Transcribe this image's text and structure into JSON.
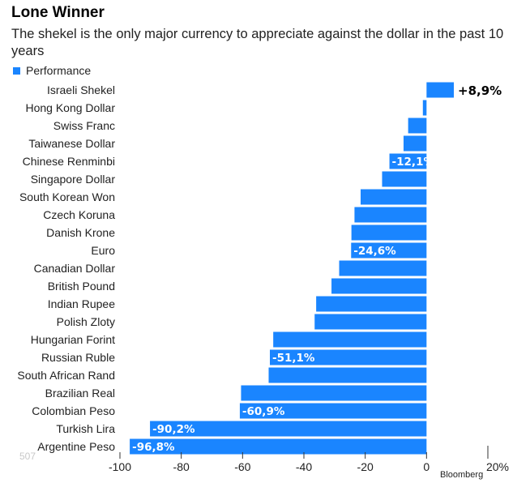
{
  "header": {
    "title": "Lone Winner",
    "subtitle": "The shekel is the only major currency to appreciate against the dollar in the past 10 years"
  },
  "legend": {
    "label": "Performance",
    "color": "#1a85ff"
  },
  "source": "Bloomberg",
  "watermark": "507",
  "chart_data": {
    "type": "bar",
    "orientation": "horizontal",
    "title": "Lone Winner",
    "subtitle": "The shekel is the only major currency to appreciate against the dollar in the past 10 years",
    "series": [
      {
        "name": "Performance",
        "color": "#1a85ff"
      }
    ],
    "categories": [
      "Israeli Shekel",
      "Hong Kong Dollar",
      "Swiss Franc",
      "Taiwanese Dollar",
      "Chinese Renminbi",
      "Singapore Dollar",
      "South Korean Won",
      "Czech Koruna",
      "Danish Krone",
      "Euro",
      "Canadian Dollar",
      "British Pound",
      "Indian Rupee",
      "Polish Zloty",
      "Hungarian Forint",
      "Russian Ruble",
      "South African Rand",
      "Brazilian Real",
      "Colombian Peso",
      "Turkish Lira",
      "Argentine Peso"
    ],
    "values": [
      8.9,
      -1.2,
      -6.0,
      -7.5,
      -12.1,
      -14.5,
      -21.5,
      -23.5,
      -24.5,
      -24.6,
      -28.5,
      -31.0,
      -36.0,
      -36.5,
      -50.0,
      -51.1,
      -51.5,
      -60.5,
      -60.9,
      -90.2,
      -96.8
    ],
    "data_labels": [
      "+8,9%",
      "",
      "",
      "",
      "-12,1%",
      "",
      "",
      "",
      "",
      "-24,6%",
      "",
      "",
      "",
      "",
      "",
      "-51,1%",
      "",
      "",
      "-60,9%",
      "-90,2%",
      "-96,8%"
    ],
    "xlim": [
      -100,
      20
    ],
    "xticks": [
      -100,
      -80,
      -60,
      -40,
      -20,
      0
    ],
    "xtick_labels": [
      "-100",
      "-80",
      "-60",
      "-40",
      "-20",
      "0"
    ],
    "end_tick_label": "20%",
    "grid": false,
    "legend_position": "top-left"
  }
}
